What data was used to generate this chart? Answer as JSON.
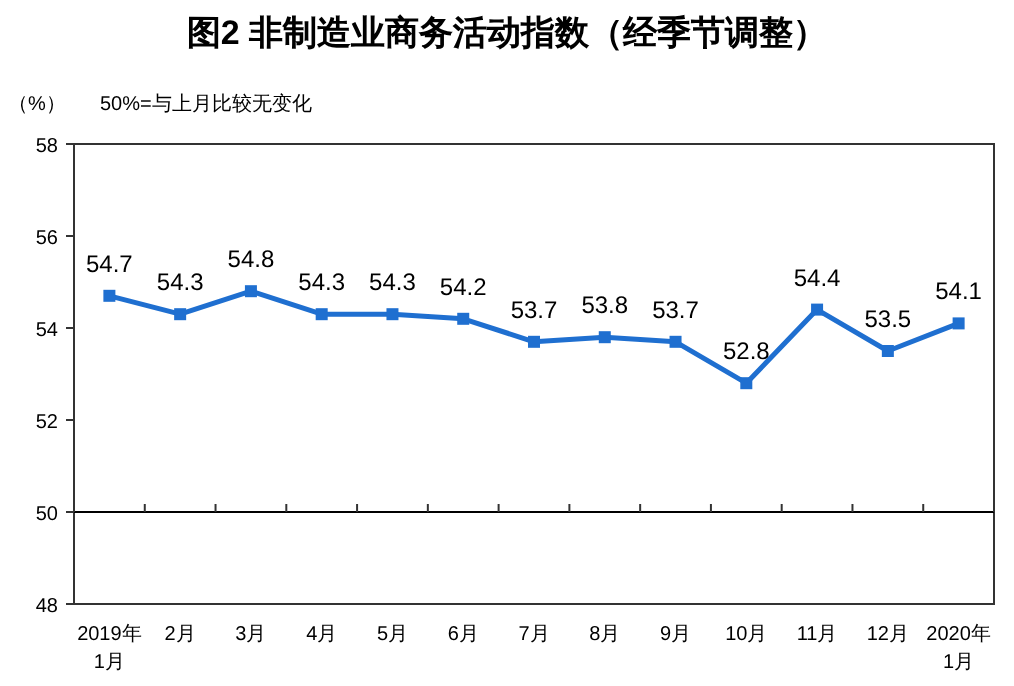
{
  "chart_data": {
    "type": "line",
    "title": "图2 非制造业商务活动指数（经季节调整）",
    "ylabel": "（%）",
    "annotations": [
      "50%=与上月比较无变化"
    ],
    "categories": [
      "2019年\n1月",
      "2月",
      "3月",
      "4月",
      "5月",
      "6月",
      "7月",
      "8月",
      "9月",
      "10月",
      "11月",
      "12月",
      "2020年\n1月"
    ],
    "series": [
      {
        "color": "#1f6fd0",
        "values": [
          54.7,
          54.3,
          54.8,
          54.3,
          54.3,
          54.2,
          53.7,
          53.8,
          53.7,
          52.8,
          54.4,
          53.5,
          54.1
        ]
      }
    ],
    "ylim": [
      48,
      58
    ],
    "yticks": [
      48,
      50,
      52,
      54,
      56,
      58
    ],
    "ref_lines": [
      {
        "axis": "y",
        "value": 50,
        "color": "#000000"
      }
    ],
    "data_labels": true,
    "marker": "square",
    "line_style": "solid",
    "grid": false
  }
}
